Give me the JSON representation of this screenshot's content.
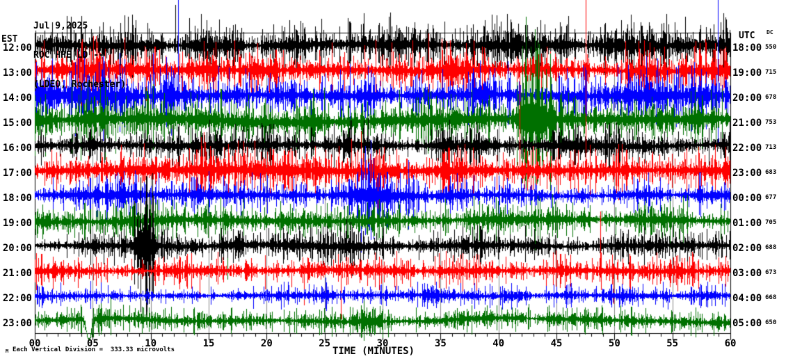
{
  "header": {
    "date": "Jul 9,2025",
    "station": "ROC HHE|LD --",
    "network": "(LDEO, Rochester)"
  },
  "axes": {
    "left_tz": "EST",
    "right_tz": "UTC",
    "dc_header": "DC",
    "x_title": "TIME (MINUTES)",
    "x_ticks": [
      "00",
      "05",
      "10",
      "15",
      "20",
      "25",
      "30",
      "35",
      "40",
      "45",
      "50",
      "55",
      "60"
    ],
    "x_minor_step_minutes": 1,
    "x_major_step_minutes": 5
  },
  "footer": {
    "marker": "M",
    "scale_note": "Each Vertical Division =  333.33 microvolts"
  },
  "colors": {
    "black": "#000000",
    "red": "#ff0000",
    "blue": "#0000ff",
    "green": "#007000",
    "grid": "#888888"
  },
  "chart_data": {
    "type": "seismogram-helicorder",
    "minutes_span": 60,
    "noise_seed": 20250709,
    "rows": [
      {
        "est": "12:00",
        "utc": "18:00",
        "dc": "550",
        "color": "black",
        "amp": 11,
        "wander": 3,
        "bursts": [
          [
            40.5,
            44,
            15
          ]
        ],
        "spikes": [
          [
            12.1,
            58,
            0
          ],
          [
            14.35,
            45,
            0
          ],
          [
            22.9,
            35,
            0
          ],
          [
            28.4,
            46,
            0
          ],
          [
            46.0,
            42,
            0
          ],
          [
            55.2,
            33,
            0
          ],
          [
            59.6,
            40,
            0
          ]
        ]
      },
      {
        "est": "13:00",
        "utc": "19:00",
        "dc": "715",
        "color": "red",
        "amp": 11,
        "wander": 3,
        "bursts": [
          [
            0,
            6,
            14
          ],
          [
            19,
            22,
            14
          ],
          [
            33,
            36,
            13
          ]
        ],
        "spikes": [
          [
            20.2,
            0,
            32
          ],
          [
            34.3,
            0,
            28
          ]
        ]
      },
      {
        "est": "14:00",
        "utc": "20:00",
        "dc": "678",
        "color": "blue",
        "amp": 12,
        "wander": 3,
        "bursts": [
          [
            0,
            15,
            17
          ],
          [
            24,
            27,
            16
          ],
          [
            51,
            59,
            18
          ]
        ],
        "spikes": [
          [
            12.35,
            137,
            0
          ],
          [
            23.8,
            0,
            30
          ],
          [
            58.9,
            137,
            70
          ]
        ]
      },
      {
        "est": "15:00",
        "utc": "21:00",
        "dc": "753",
        "color": "green",
        "amp": 12,
        "wander": 6,
        "bursts": [
          [
            0,
            8,
            16
          ],
          [
            41,
            45,
            46
          ],
          [
            45,
            52,
            16
          ]
        ],
        "spikes": [
          [
            41.95,
            30,
            55
          ],
          [
            43.5,
            25,
            60
          ]
        ]
      },
      {
        "est": "16:00",
        "utc": "22:00",
        "dc": "713",
        "color": "black",
        "amp": 9,
        "wander": 3,
        "bursts": [
          [
            7,
            13,
            12
          ],
          [
            26,
            29,
            11
          ]
        ],
        "spikes": [
          [
            26.2,
            0,
            40
          ]
        ]
      },
      {
        "est": "17:00",
        "utc": "23:00",
        "dc": "683",
        "color": "red",
        "amp": 10,
        "wander": 3,
        "bursts": [
          [
            13.5,
            16,
            13
          ],
          [
            24,
            32,
            14
          ]
        ],
        "spikes": [
          [
            29.6,
            0,
            65
          ],
          [
            41.8,
            145,
            0
          ],
          [
            47.5,
            245,
            0
          ]
        ]
      },
      {
        "est": "18:00",
        "utc": "00:00",
        "dc": "677",
        "color": "blue",
        "amp": 8,
        "wander": 3,
        "bursts": [
          [
            6,
            9,
            11
          ],
          [
            25,
            34,
            22
          ]
        ],
        "spikes": []
      },
      {
        "est": "19:00",
        "utc": "01:00",
        "dc": "705",
        "color": "green",
        "amp": 8,
        "wander": 4,
        "bursts": [
          [
            42,
            46,
            12
          ],
          [
            54,
            57,
            10
          ]
        ],
        "spikes": [
          [
            16.6,
            0,
            85
          ]
        ]
      },
      {
        "est": "20:00",
        "utc": "02:00",
        "dc": "688",
        "color": "black",
        "amp": 7,
        "wander": 3,
        "bursts": [
          [
            8.3,
            10.6,
            40
          ],
          [
            16.8,
            18.2,
            16
          ],
          [
            26,
            28,
            11
          ]
        ],
        "spikes": []
      },
      {
        "est": "21:00",
        "utc": "03:00",
        "dc": "673",
        "color": "red",
        "amp": 7,
        "wander": 3,
        "bursts": [
          [
            20,
            21.5,
            10
          ]
        ],
        "spikes": [
          [
            14.2,
            0,
            40
          ],
          [
            23.2,
            0,
            50
          ],
          [
            26.4,
            0,
            70
          ],
          [
            48.8,
            85,
            0
          ],
          [
            49.9,
            0,
            48
          ]
        ]
      },
      {
        "est": "22:00",
        "utc": "04:00",
        "dc": "668",
        "color": "blue",
        "amp": 5,
        "wander": 2,
        "bursts": [
          [
            2,
            3.5,
            8
          ],
          [
            24.5,
            26,
            8
          ]
        ],
        "spikes": [
          [
            54.6,
            0,
            20
          ],
          [
            57.5,
            0,
            15
          ]
        ]
      },
      {
        "est": "23:00",
        "utc": "05:00",
        "dc": "650",
        "color": "green",
        "amp": 5.5,
        "wander": 8,
        "bursts": [
          [
            5.3,
            7.5,
            9
          ],
          [
            27,
            30.5,
            9
          ]
        ],
        "excursion": {
          "center": 4.65,
          "width": 0.3,
          "depth": 30
        },
        "spikes": []
      }
    ]
  }
}
